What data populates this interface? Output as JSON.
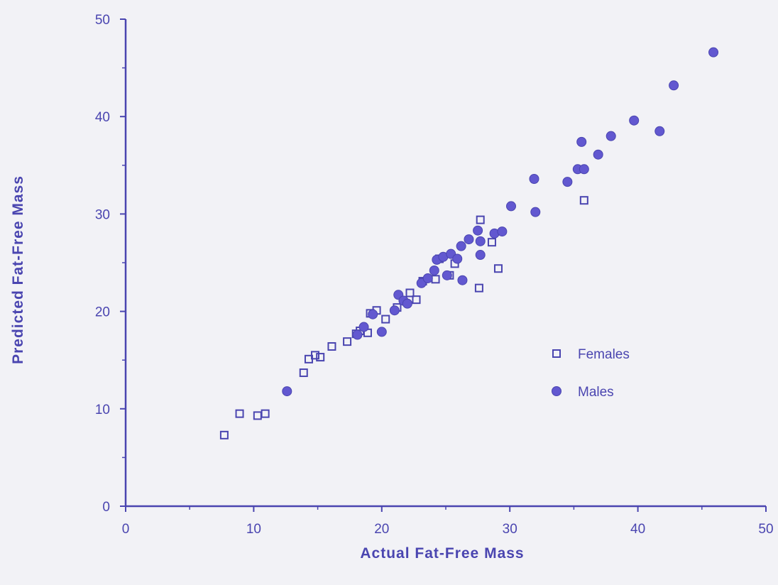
{
  "chart_data": {
    "type": "scatter",
    "title": "",
    "xlabel": "Actual Fat-Free Mass",
    "ylabel": "Predicted Fat-Free Mass",
    "xlim": [
      0,
      50
    ],
    "ylim": [
      0,
      50
    ],
    "x_ticks": [
      "0",
      "10",
      "20",
      "30",
      "40",
      "50"
    ],
    "y_ticks": [
      "0",
      "10",
      "20",
      "30",
      "40",
      "50"
    ],
    "grid": false,
    "legend_position": "right-middle",
    "colors": {
      "ink": "#4a45b0",
      "male_marker": "#6258d0"
    },
    "series": [
      {
        "name": "Females",
        "marker": "open-square",
        "points": [
          [
            7.7,
            7.3
          ],
          [
            8.9,
            9.5
          ],
          [
            10.3,
            9.3
          ],
          [
            10.9,
            9.5
          ],
          [
            13.9,
            13.7
          ],
          [
            14.3,
            15.1
          ],
          [
            14.8,
            15.5
          ],
          [
            15.2,
            15.3
          ],
          [
            16.1,
            16.4
          ],
          [
            17.3,
            16.9
          ],
          [
            18.0,
            17.7
          ],
          [
            18.3,
            18.0
          ],
          [
            18.9,
            17.8
          ],
          [
            19.1,
            19.8
          ],
          [
            19.6,
            20.1
          ],
          [
            20.3,
            19.2
          ],
          [
            21.2,
            20.4
          ],
          [
            22.2,
            21.9
          ],
          [
            22.7,
            21.2
          ],
          [
            23.2,
            23.1
          ],
          [
            24.2,
            23.3
          ],
          [
            24.5,
            25.4
          ],
          [
            25.3,
            23.7
          ],
          [
            25.7,
            24.9
          ],
          [
            27.6,
            22.4
          ],
          [
            27.7,
            29.4
          ],
          [
            28.6,
            27.1
          ],
          [
            29.1,
            24.4
          ],
          [
            35.8,
            31.4
          ]
        ]
      },
      {
        "name": "Males",
        "marker": "filled-circle",
        "points": [
          [
            12.6,
            11.8
          ],
          [
            18.1,
            17.6
          ],
          [
            18.6,
            18.4
          ],
          [
            19.3,
            19.7
          ],
          [
            20.0,
            17.9
          ],
          [
            21.0,
            20.1
          ],
          [
            21.3,
            21.7
          ],
          [
            21.7,
            21.1
          ],
          [
            22.0,
            20.8
          ],
          [
            23.1,
            22.9
          ],
          [
            23.6,
            23.4
          ],
          [
            24.1,
            24.2
          ],
          [
            24.3,
            25.3
          ],
          [
            24.8,
            25.6
          ],
          [
            25.1,
            23.7
          ],
          [
            25.4,
            25.9
          ],
          [
            25.9,
            25.4
          ],
          [
            26.2,
            26.7
          ],
          [
            26.3,
            23.2
          ],
          [
            26.8,
            27.4
          ],
          [
            27.5,
            28.3
          ],
          [
            27.7,
            27.2
          ],
          [
            27.7,
            25.8
          ],
          [
            28.8,
            28.0
          ],
          [
            29.4,
            28.2
          ],
          [
            30.1,
            30.8
          ],
          [
            32.0,
            30.2
          ],
          [
            31.9,
            33.6
          ],
          [
            34.5,
            33.3
          ],
          [
            35.3,
            34.6
          ],
          [
            35.8,
            34.6
          ],
          [
            35.6,
            37.4
          ],
          [
            36.9,
            36.1
          ],
          [
            37.9,
            38.0
          ],
          [
            39.7,
            39.6
          ],
          [
            41.7,
            38.5
          ],
          [
            42.8,
            43.2
          ],
          [
            45.9,
            46.6
          ]
        ]
      }
    ]
  }
}
